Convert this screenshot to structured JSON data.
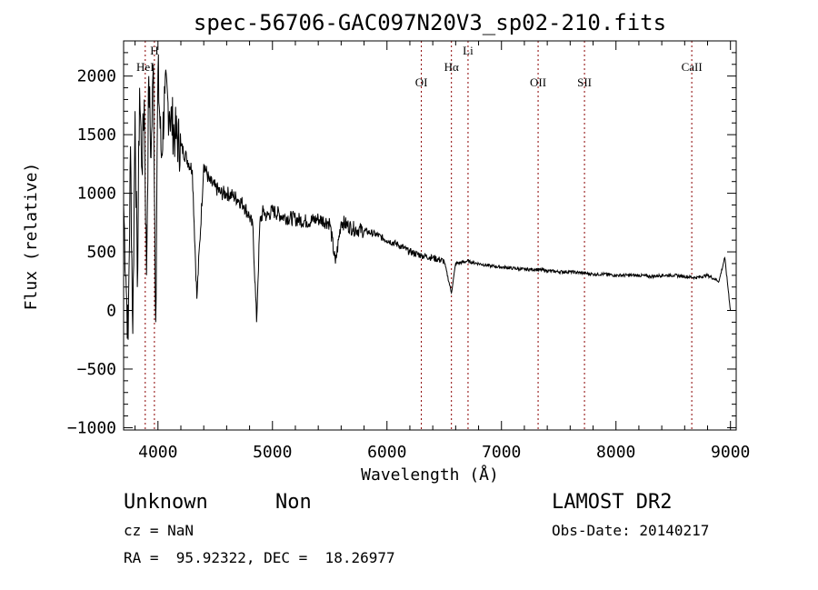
{
  "chart_data": {
    "type": "line",
    "title": "spec-56706-GAC097N20V3_sp02-210.fits",
    "xlabel": "Wavelength (Å)",
    "ylabel": "Flux (relative)",
    "xlim": [
      3700,
      9050
    ],
    "ylim": [
      -1020,
      2300
    ],
    "x_ticks": [
      4000,
      5000,
      6000,
      7000,
      8000,
      9000
    ],
    "x_tick_labels": [
      "4000",
      "5000",
      "6000",
      "7000",
      "8000",
      "9000"
    ],
    "y_ticks": [
      -1000,
      -500,
      0,
      500,
      1000,
      1500,
      2000
    ],
    "y_tick_labels": [
      "−1000",
      "−500",
      "0",
      "500",
      "1000",
      "1500",
      "2000"
    ],
    "x_minor_step": 200,
    "y_minor_step": 100,
    "grid": false,
    "line_color": "#000000",
    "line_marker_color": "#8b0000",
    "spectral_lines": [
      {
        "label": "HeI",
        "x": 3889
      },
      {
        "label": "H",
        "x": 3969
      },
      {
        "label": "OI",
        "x": 6300
      },
      {
        "label": "Hα",
        "x": 6563
      },
      {
        "label": "Li",
        "x": 6708
      },
      {
        "label": "OII",
        "x": 7320
      },
      {
        "label": "SII",
        "x": 7725
      },
      {
        "label": "CaII",
        "x": 8662
      }
    ],
    "series": [
      {
        "x": [
          3700,
          3720,
          3740,
          3760,
          3780,
          3800,
          3820,
          3840,
          3860,
          3880,
          3900,
          3920,
          3940,
          3960,
          3980,
          4000,
          4030,
          4060,
          4100,
          4150,
          4200,
          4250,
          4300,
          4340,
          4400,
          4450,
          4500,
          4550,
          4600,
          4650,
          4700,
          4750,
          4800,
          4830,
          4861,
          4890,
          4920,
          4950,
          5000,
          5100,
          5200,
          5300,
          5400,
          5500,
          5550,
          5600,
          5700,
          5800,
          5900,
          6000,
          6100,
          6200,
          6300,
          6400,
          6500,
          6563,
          6600,
          6700,
          6800,
          6900,
          7000,
          7100,
          7200,
          7300,
          7400,
          7500,
          7600,
          7700,
          7800,
          7900,
          8000,
          8100,
          8200,
          8300,
          8400,
          8500,
          8600,
          8700,
          8800,
          8900,
          8950,
          9000
        ],
        "y": [
          900,
          300,
          -250,
          1400,
          -200,
          1700,
          200,
          1900,
          1200,
          1800,
          300,
          2000,
          1300,
          2100,
          -100,
          2050,
          1300,
          1850,
          1700,
          1500,
          1400,
          1300,
          1200,
          100,
          1250,
          1100,
          1050,
          1000,
          1000,
          980,
          950,
          900,
          800,
          700,
          -100,
          750,
          850,
          800,
          850,
          800,
          780,
          760,
          780,
          750,
          400,
          760,
          700,
          680,
          650,
          600,
          560,
          500,
          470,
          450,
          420,
          150,
          400,
          420,
          400,
          380,
          370,
          360,
          350,
          350,
          340,
          330,
          330,
          320,
          310,
          310,
          300,
          300,
          300,
          290,
          300,
          300,
          290,
          280,
          300,
          250,
          450,
          0
        ]
      }
    ]
  },
  "footer": {
    "object_class": "Unknown",
    "object_subclass": "Non",
    "redshift": "cz = NaN",
    "coords": "RA =  95.92322, DEC =  18.26977",
    "survey": "LAMOST DR2",
    "obs_date": "Obs-Date: 20140217"
  }
}
